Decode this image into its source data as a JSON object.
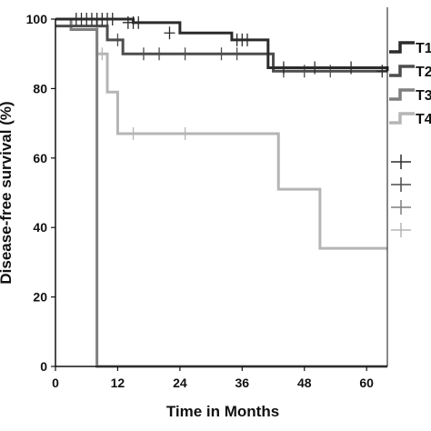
{
  "chart_data": {
    "type": "line",
    "xlabel": "Time in Months",
    "ylabel": "Disease-free survival (%)",
    "xlim": [
      0,
      64
    ],
    "ylim": [
      0,
      100
    ],
    "xticks": [
      0,
      12,
      24,
      36,
      48,
      60
    ],
    "yticks": [
      0,
      20,
      40,
      60,
      80,
      100
    ],
    "grid": false,
    "legend_position": "right",
    "series": [
      {
        "name": "T1",
        "color": "#2b2b2b",
        "step_x": [
          0,
          15,
          24,
          34,
          41,
          64
        ],
        "step_y": [
          100,
          99,
          96,
          94,
          86,
          85
        ],
        "censor_x": [
          4,
          5,
          6,
          7,
          8,
          9,
          10,
          11,
          14,
          15,
          16,
          22,
          35,
          36,
          37,
          44,
          50,
          57,
          63
        ],
        "censor_y": [
          100,
          100,
          100,
          100,
          100,
          100,
          100,
          100,
          99,
          99,
          99,
          96,
          94,
          94,
          94,
          86,
          86,
          86,
          85
        ]
      },
      {
        "name": "T2",
        "color": "#4d4d4d",
        "step_x": [
          0,
          10,
          13,
          42,
          64
        ],
        "step_y": [
          98,
          94,
          90,
          85,
          85
        ],
        "censor_x": [
          12,
          17,
          20,
          25,
          32,
          35,
          44,
          48,
          53
        ],
        "censor_y": [
          94,
          90,
          90,
          90,
          90,
          90,
          85,
          85,
          85
        ]
      },
      {
        "name": "T3",
        "color": "#7f7f7f",
        "step_x": [
          0,
          3,
          8,
          8,
          64
        ],
        "step_y": [
          100,
          97,
          97,
          0,
          0
        ],
        "censor_x": [],
        "censor_y": []
      },
      {
        "name": "T4",
        "color": "#b5b5b5",
        "step_x": [
          0,
          8,
          10,
          12,
          43,
          51,
          64
        ],
        "step_y": [
          100,
          90,
          79,
          67,
          51,
          34,
          34
        ],
        "censor_x": [
          9,
          15,
          25
        ],
        "censor_y": [
          90,
          67,
          67
        ]
      }
    ]
  }
}
